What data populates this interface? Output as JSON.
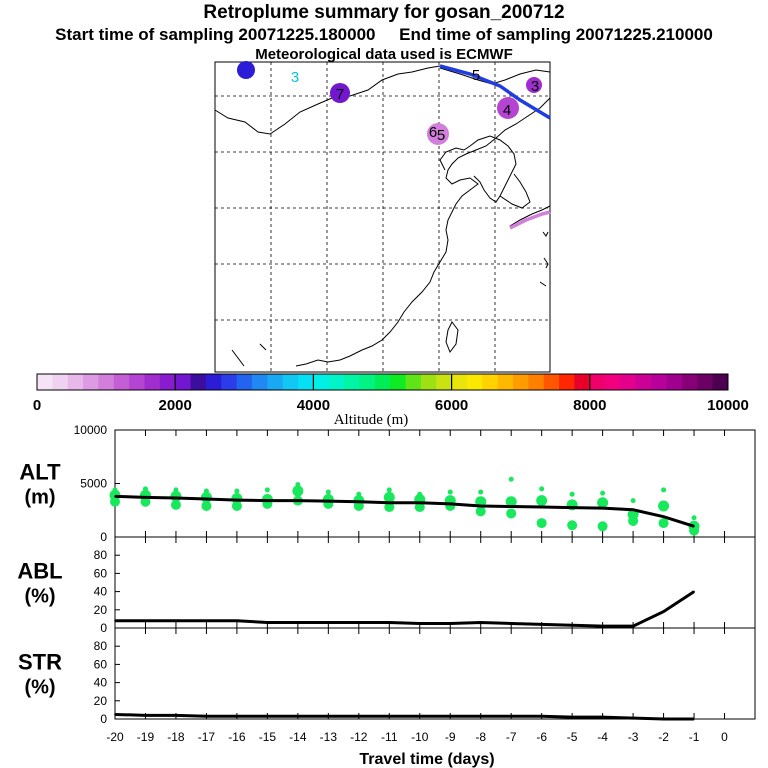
{
  "title": "Retroplume summary for gosan_200712",
  "subtitle": "Start time of sampling 20071225.180000     End time of sampling 20071225.210000",
  "met_note": "Meteorological data used is ECMWF",
  "colorbar": {
    "label": "Altitude  (m)",
    "ticks": [
      "0",
      "2000",
      "4000",
      "6000",
      "8000",
      "10000"
    ],
    "colors": [
      "#f5e4f5",
      "#efd2f0",
      "#e7b9ea",
      "#dd9be3",
      "#d27fdb",
      "#c45ed4",
      "#b444d1",
      "#9f2dd0",
      "#8a1ccf",
      "#7316cf",
      "#3b0ea0",
      "#2c1cd8",
      "#2a3de8",
      "#2463f0",
      "#1f88f2",
      "#19a9f3",
      "#12c7f4",
      "#06e0f5",
      "#00f0e8",
      "#00f4c8",
      "#00f5a4",
      "#00f383",
      "#00ee55",
      "#10ea22",
      "#5fe41a",
      "#9fe014",
      "#c9e212",
      "#e8e40c",
      "#fbe800",
      "#ffd200",
      "#ffb800",
      "#ff9d00",
      "#ff7f00",
      "#ff5600",
      "#ff2600",
      "#e8002a",
      "#f0006a",
      "#f0007f",
      "#e2008d",
      "#cc0094",
      "#b8009a",
      "#a1008f",
      "#870078",
      "#6c0064",
      "#4e0050"
    ]
  },
  "map_labels": [
    {
      "label": "8",
      "color": "#2c1cd8"
    },
    {
      "label": "3",
      "color": "#06c0e0"
    },
    {
      "label": "7",
      "color": "#7316cf"
    },
    {
      "label": "5",
      "color": "#2c1cd8"
    },
    {
      "label": "3",
      "color": "#9f2dd0"
    },
    {
      "label": "4",
      "color": "#b444d1"
    },
    {
      "label": "6",
      "color": "#c45ed4"
    }
  ],
  "chart_data": [
    {
      "type": "line",
      "title": "ALT",
      "ylabel": "ALT (m)",
      "ylabel_lines": [
        "ALT",
        "(m)"
      ],
      "xlabel": "Travel time (days)",
      "x": [
        -20,
        -19,
        -18,
        -17,
        -16,
        -15,
        -14,
        -13,
        -12,
        -11,
        -10,
        -9,
        -8,
        -7,
        -6,
        -5,
        -4,
        -3,
        -2,
        -1
      ],
      "values": [
        3800,
        3700,
        3650,
        3550,
        3450,
        3400,
        3400,
        3350,
        3300,
        3200,
        3200,
        3100,
        2900,
        2850,
        2800,
        2750,
        2700,
        2550,
        1900,
        1000
      ],
      "ylim": [
        0,
        10000
      ],
      "yticks": [
        "0",
        "5000",
        "10000"
      ],
      "ytick_values": [
        0,
        5000,
        10000
      ],
      "spread": [
        [
          4400,
          3900,
          3300
        ],
        [
          4500,
          3900,
          3300
        ],
        [
          4400,
          3800,
          3000
        ],
        [
          4300,
          3700,
          2900
        ],
        [
          4300,
          3600,
          2900
        ],
        [
          4400,
          3500,
          3100
        ],
        [
          4900,
          4300,
          3400
        ],
        [
          4200,
          3500,
          3100
        ],
        [
          4000,
          3400,
          2900
        ],
        [
          4400,
          3700,
          2800
        ],
        [
          4000,
          3500,
          2800
        ],
        [
          4200,
          3400,
          2900
        ],
        [
          4200,
          3300,
          2400
        ],
        [
          5400,
          3300,
          2200
        ],
        [
          4500,
          3400,
          1300
        ],
        [
          4000,
          3000,
          1100
        ],
        [
          4100,
          3200,
          1000
        ],
        [
          3400,
          2100,
          1500
        ],
        [
          4400,
          2900,
          1300
        ],
        [
          1800,
          1000,
          600
        ]
      ]
    },
    {
      "type": "line",
      "title": "ABL",
      "ylabel": "ABL (%)",
      "ylabel_lines": [
        "ABL",
        "(%)"
      ],
      "x": [
        -20,
        -19,
        -18,
        -17,
        -16,
        -15,
        -14,
        -13,
        -12,
        -11,
        -10,
        -9,
        -8,
        -7,
        -6,
        -5,
        -4,
        -3,
        -2,
        -1
      ],
      "values": [
        8,
        8,
        8,
        8,
        8,
        6,
        6,
        6,
        6,
        6,
        5,
        5,
        6,
        5,
        4,
        3,
        2,
        2,
        18,
        40
      ],
      "ylim": [
        0,
        100
      ],
      "yticks": [
        "0",
        "20",
        "40",
        "60",
        "80"
      ],
      "ytick_values": [
        0,
        20,
        40,
        60,
        80
      ]
    },
    {
      "type": "line",
      "title": "STR",
      "ylabel": "STR (%)",
      "ylabel_lines": [
        "STR",
        "(%)"
      ],
      "x": [
        -20,
        -19,
        -18,
        -17,
        -16,
        -15,
        -14,
        -13,
        -12,
        -11,
        -10,
        -9,
        -8,
        -7,
        -6,
        -5,
        -4,
        -3,
        -2,
        -1
      ],
      "values": [
        5,
        4,
        4,
        3,
        3,
        3,
        3,
        3,
        3,
        3,
        3,
        3,
        3,
        3,
        3,
        2,
        2,
        1,
        0,
        0
      ],
      "ylim": [
        0,
        100
      ],
      "yticks": [
        "0",
        "20",
        "40",
        "60",
        "80"
      ],
      "ytick_values": [
        0,
        20,
        40,
        60,
        80
      ],
      "xticks": [
        "-20",
        "-19",
        "-18",
        "-17",
        "-16",
        "-15",
        "-14",
        "-13",
        "-12",
        "-11",
        "-10",
        "-9",
        "-8",
        "-7",
        "-6",
        "-5",
        "-4",
        "-3",
        "-2",
        "-1",
        "0"
      ]
    }
  ]
}
